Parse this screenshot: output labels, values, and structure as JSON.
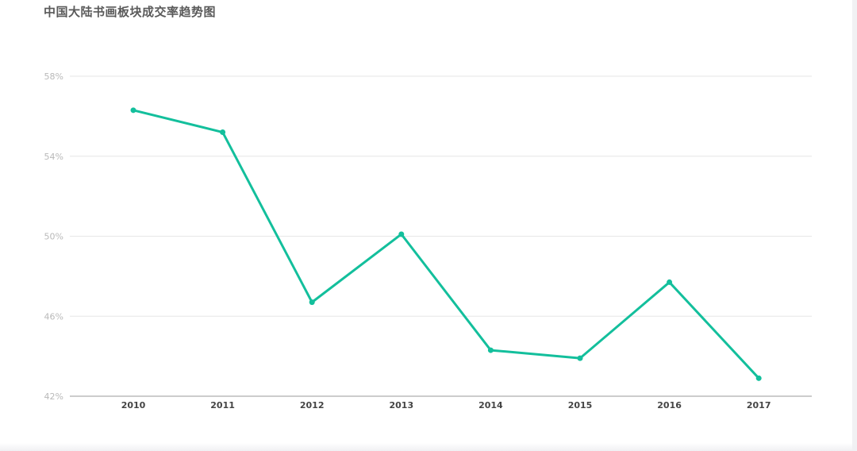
{
  "chart_data": {
    "type": "line",
    "title": "中国大陆书画板块成交率趋势图",
    "xlabel": "",
    "ylabel": "",
    "x": [
      "2010",
      "2011",
      "2012",
      "2013",
      "2014",
      "2015",
      "2016",
      "2017"
    ],
    "series": [
      {
        "values": [
          56.3,
          55.2,
          46.7,
          50.1,
          44.3,
          43.9,
          47.7,
          42.9
        ]
      }
    ],
    "ylim": [
      42,
      58
    ],
    "yticks": [
      42,
      46,
      50,
      54,
      58
    ],
    "ytick_labels": [
      "42%",
      "46%",
      "50%",
      "54%",
      "58%"
    ],
    "grid": true,
    "legend": "none",
    "line_color": "#13bf9c"
  }
}
